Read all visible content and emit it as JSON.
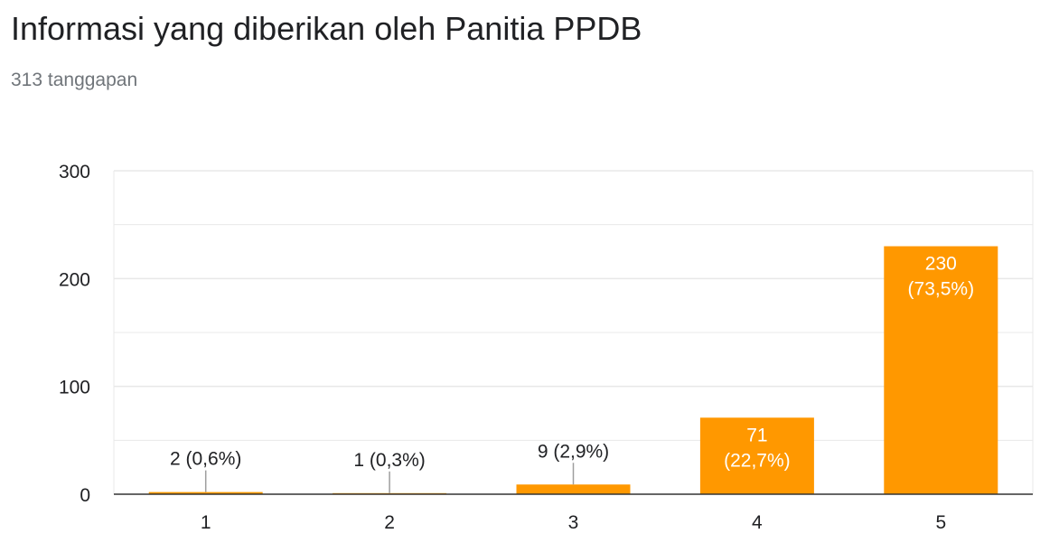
{
  "header": {
    "title": "Informasi yang diberikan oleh Panitia PPDB",
    "subtitle": "313 tanggapan"
  },
  "colors": {
    "bar": "#ff9800",
    "grid": "#e8e8e8",
    "axis": "#333333",
    "label_dark": "#202124",
    "label_light": "#ffffff",
    "leader": "#9e9e9e"
  },
  "chart_data": {
    "type": "bar",
    "categories": [
      "1",
      "2",
      "3",
      "4",
      "5"
    ],
    "values": [
      2,
      1,
      9,
      71,
      230
    ],
    "data_labels": [
      "2 (0,6%)",
      "1 (0,3%)",
      "9 (2,9%)",
      "71 (22,7%)",
      "230 (73,5%)"
    ],
    "ylim": [
      0,
      300
    ],
    "yticks": [
      "0",
      "100",
      "200",
      "300"
    ],
    "grid": true,
    "legend": "none",
    "title": "",
    "xlabel": "",
    "ylabel": ""
  }
}
